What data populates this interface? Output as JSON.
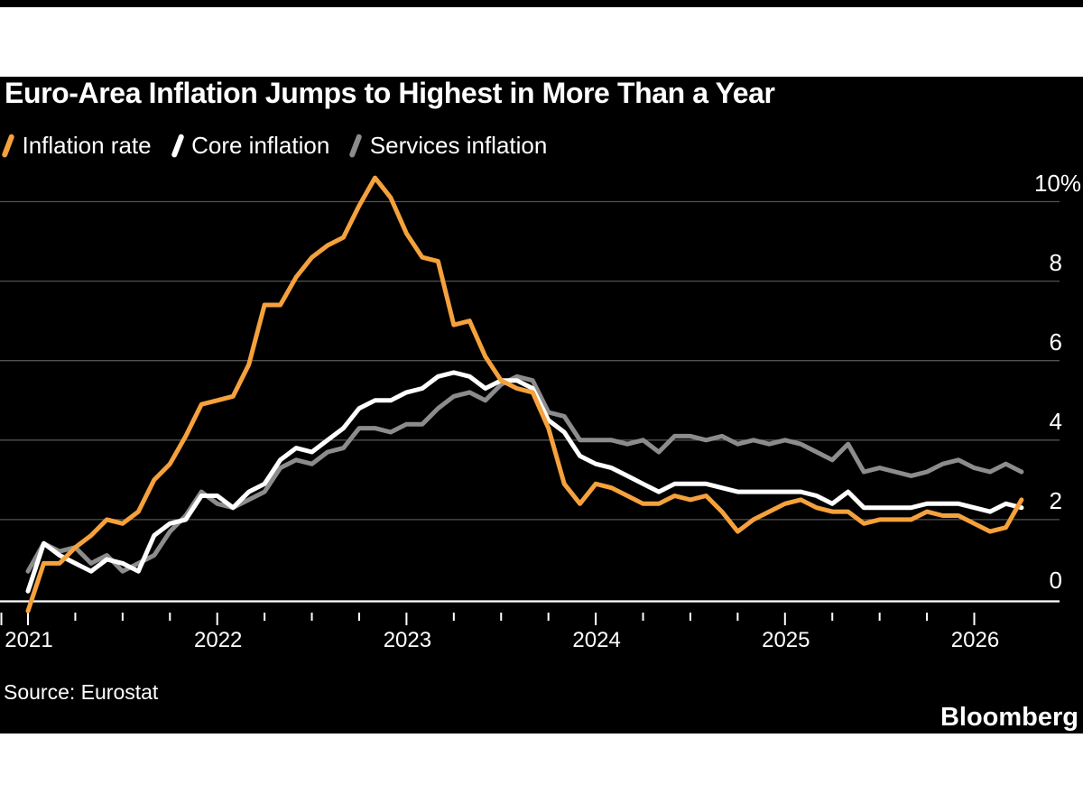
{
  "chart_data": {
    "type": "line",
    "title": "Euro-Area Inflation Jumps to Highest in More Than a Year",
    "xlabel": "",
    "ylabel": "",
    "unit": "%",
    "ylim": [
      -0.5,
      10.8
    ],
    "grid": "horizontal",
    "legend_position": "top",
    "x": [
      "2020-12",
      "2021-01",
      "2021-02",
      "2021-03",
      "2021-04",
      "2021-05",
      "2021-06",
      "2021-07",
      "2021-08",
      "2021-09",
      "2021-10",
      "2021-11",
      "2021-12",
      "2022-01",
      "2022-02",
      "2022-03",
      "2022-04",
      "2022-05",
      "2022-06",
      "2022-07",
      "2022-08",
      "2022-09",
      "2022-10",
      "2022-11",
      "2022-12",
      "2023-01",
      "2023-02",
      "2023-03",
      "2023-04",
      "2023-05",
      "2023-06",
      "2023-07",
      "2023-08",
      "2023-09",
      "2023-10",
      "2023-11",
      "2023-12",
      "2024-01",
      "2024-02",
      "2024-03",
      "2024-04",
      "2024-05",
      "2024-06",
      "2024-07",
      "2024-08",
      "2024-09",
      "2024-10",
      "2024-11",
      "2024-12",
      "2025-01",
      "2025-02",
      "2025-03",
      "2025-04",
      "2025-05",
      "2025-06",
      "2025-07",
      "2025-08",
      "2025-09",
      "2025-10",
      "2025-11",
      "2025-12",
      "2026-01",
      "2026-02",
      "2026-03"
    ],
    "series": [
      {
        "id": "inflation-rate",
        "name": "Inflation rate",
        "color": "#F5A13C",
        "values": [
          -0.3,
          0.9,
          0.9,
          1.3,
          1.6,
          2.0,
          1.9,
          2.2,
          3.0,
          3.4,
          4.1,
          4.9,
          5.0,
          5.1,
          5.9,
          7.4,
          7.4,
          8.1,
          8.6,
          8.9,
          9.1,
          9.9,
          10.6,
          10.1,
          9.2,
          8.6,
          8.5,
          6.9,
          7.0,
          6.1,
          5.5,
          5.3,
          5.2,
          4.3,
          2.9,
          2.4,
          2.9,
          2.8,
          2.6,
          2.4,
          2.4,
          2.6,
          2.5,
          2.6,
          2.2,
          1.7,
          2.0,
          2.2,
          2.4,
          2.5,
          2.3,
          2.2,
          2.2,
          1.9,
          2.0,
          2.0,
          2.0,
          2.2,
          2.1,
          2.1,
          1.9,
          1.7,
          1.8,
          2.5
        ]
      },
      {
        "id": "core-inflation",
        "name": "Core inflation",
        "color": "#FFFFFF",
        "values": [
          0.2,
          1.4,
          1.1,
          0.9,
          0.7,
          1.0,
          0.9,
          0.7,
          1.6,
          1.9,
          2.0,
          2.6,
          2.6,
          2.3,
          2.7,
          2.9,
          3.5,
          3.8,
          3.7,
          4.0,
          4.3,
          4.8,
          5.0,
          5.0,
          5.2,
          5.3,
          5.6,
          5.7,
          5.6,
          5.3,
          5.5,
          5.5,
          5.3,
          4.5,
          4.2,
          3.6,
          3.4,
          3.3,
          3.1,
          2.9,
          2.7,
          2.9,
          2.9,
          2.9,
          2.8,
          2.7,
          2.7,
          2.7,
          2.7,
          2.7,
          2.6,
          2.4,
          2.7,
          2.3,
          2.3,
          2.3,
          2.3,
          2.4,
          2.4,
          2.4,
          2.3,
          2.2,
          2.4,
          2.3
        ]
      },
      {
        "id": "services-inflation",
        "name": "Services inflation",
        "color": "#8C8C8C",
        "values": [
          0.7,
          1.4,
          1.2,
          1.3,
          0.9,
          1.1,
          0.7,
          0.9,
          1.1,
          1.7,
          2.1,
          2.7,
          2.4,
          2.3,
          2.5,
          2.7,
          3.3,
          3.5,
          3.4,
          3.7,
          3.8,
          4.3,
          4.3,
          4.2,
          4.4,
          4.4,
          4.8,
          5.1,
          5.2,
          5.0,
          5.4,
          5.6,
          5.5,
          4.7,
          4.6,
          4.0,
          4.0,
          4.0,
          3.9,
          4.0,
          3.7,
          4.1,
          4.1,
          4.0,
          4.1,
          3.9,
          4.0,
          3.9,
          4.0,
          3.9,
          3.7,
          3.5,
          3.9,
          3.2,
          3.3,
          3.2,
          3.1,
          3.2,
          3.4,
          3.5,
          3.3,
          3.2,
          3.4,
          3.2
        ]
      }
    ],
    "yticks": [
      {
        "value": 0,
        "label": "0"
      },
      {
        "value": 2,
        "label": "2"
      },
      {
        "value": 4,
        "label": "4"
      },
      {
        "value": 6,
        "label": "6"
      },
      {
        "value": 8,
        "label": "8"
      },
      {
        "value": 10,
        "label": "10%"
      }
    ],
    "xticks": [
      "2021",
      "2022",
      "2023",
      "2024",
      "2025",
      "2026"
    ]
  },
  "colors": {
    "page_background": "#FFFFFF",
    "card_background": "#000000",
    "grid": "#525252",
    "axis": "#FFFFFF",
    "text": "#FFFFFF"
  },
  "footer": {
    "source": "Source: Eurostat",
    "brand": "Bloomberg"
  }
}
